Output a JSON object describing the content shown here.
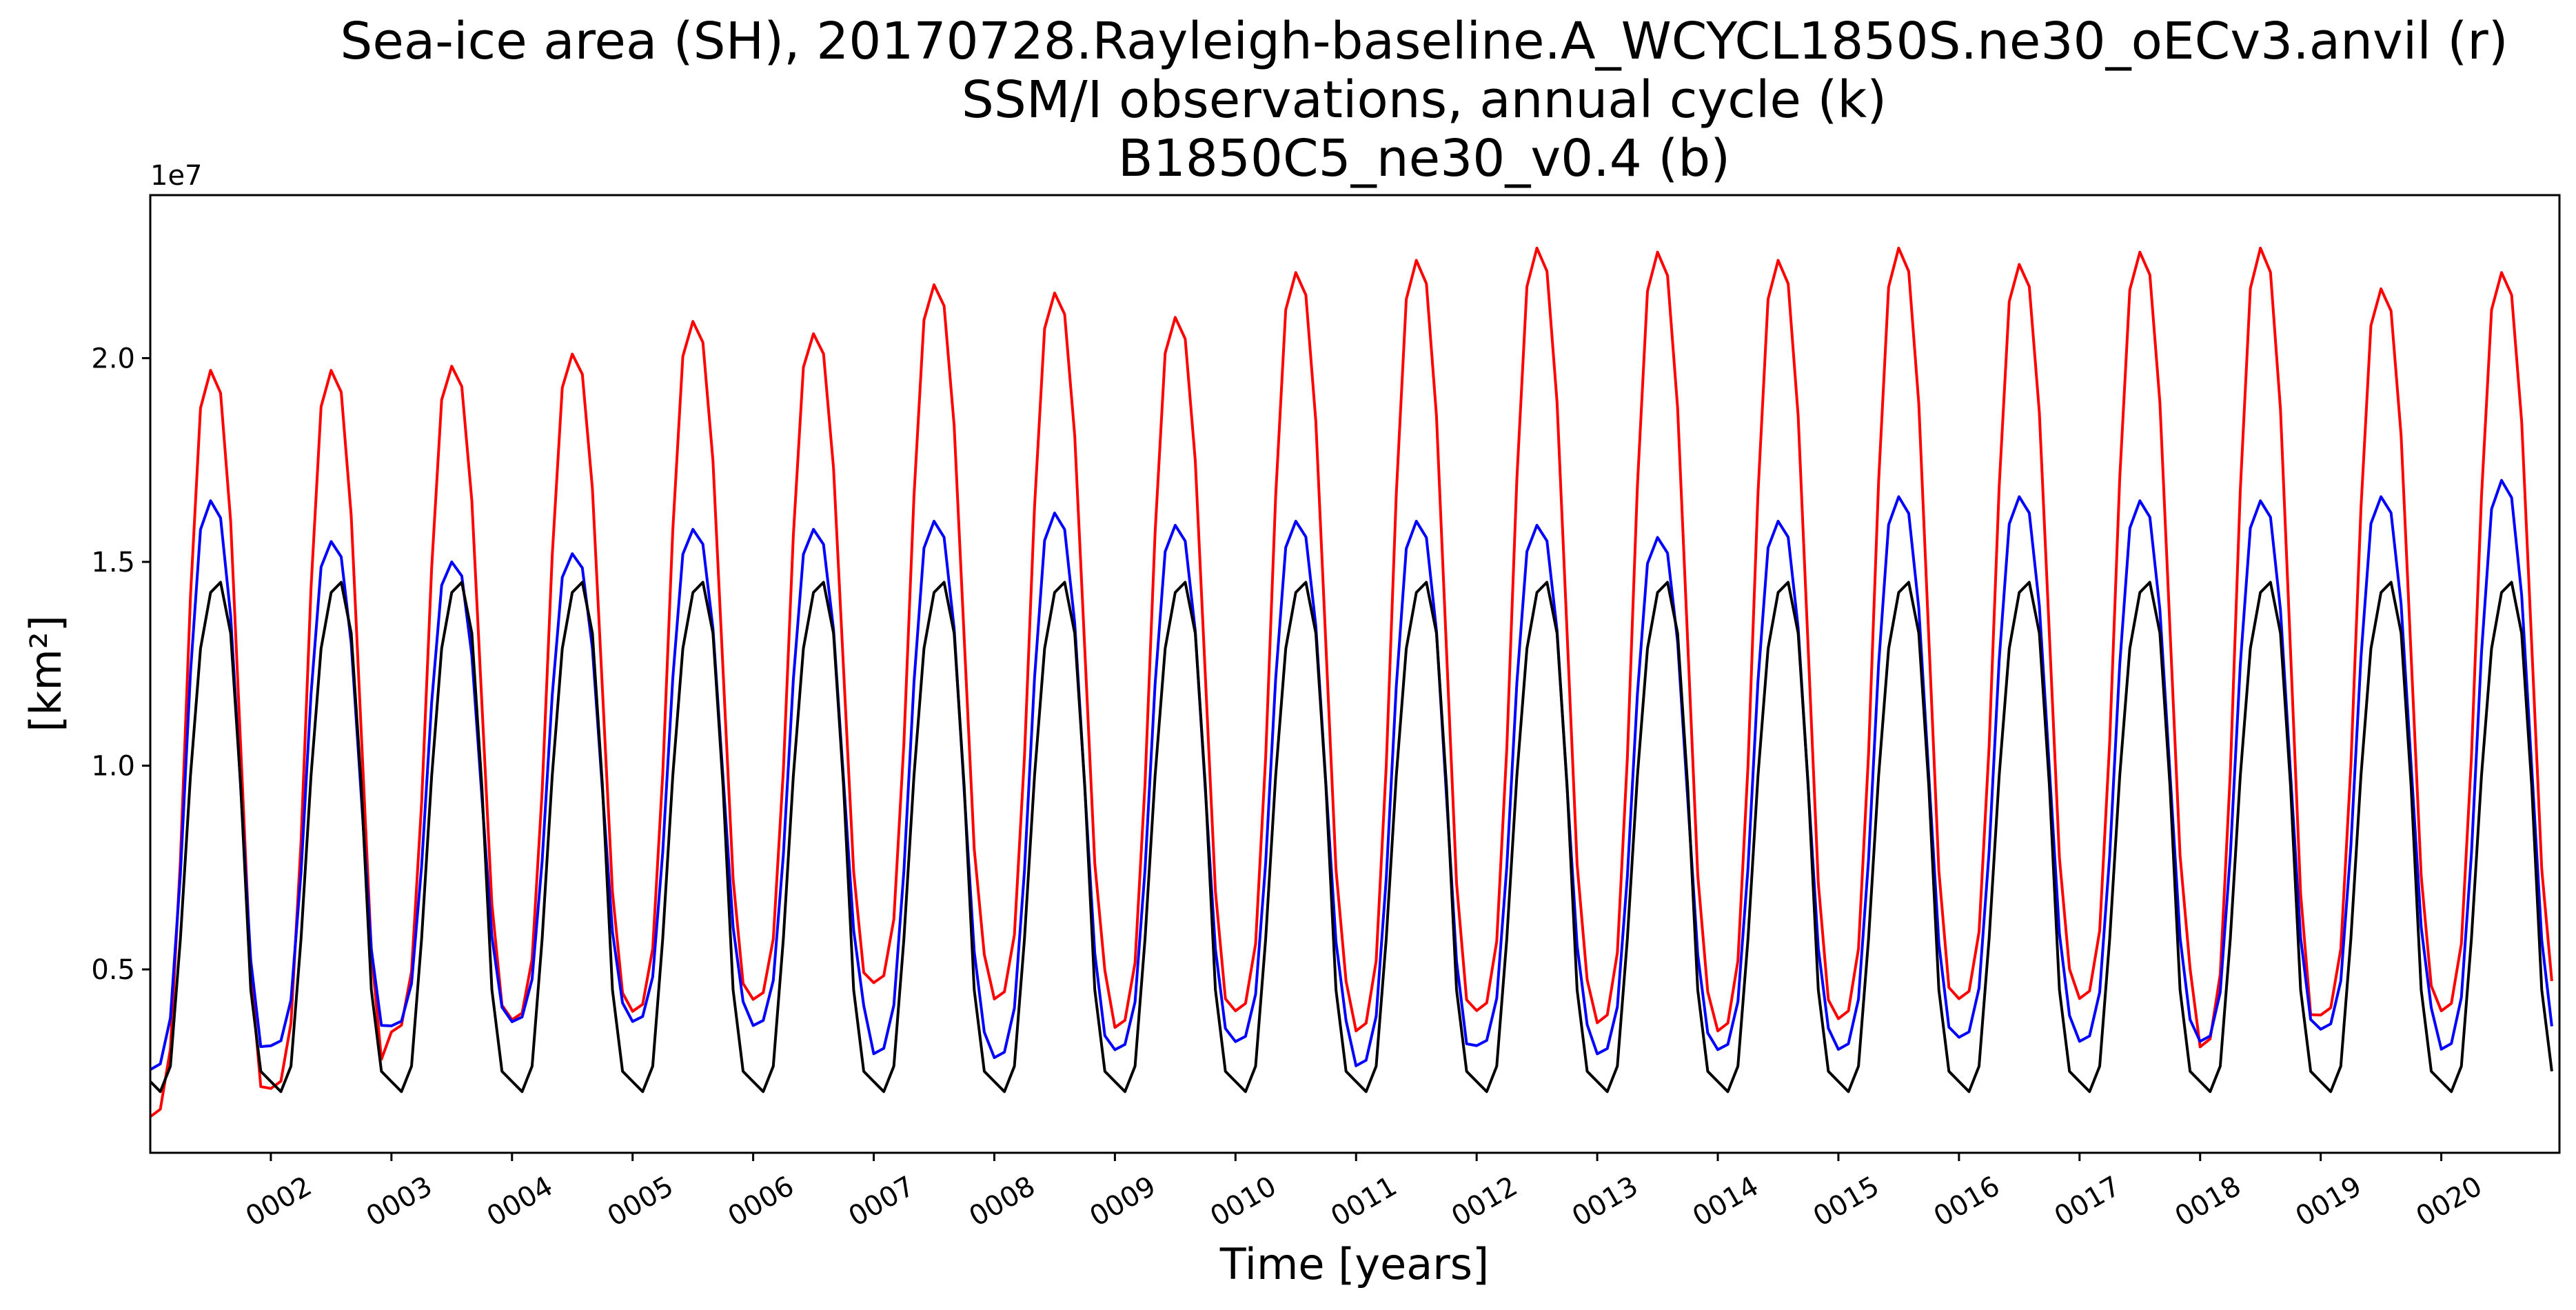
{
  "chart_data": {
    "type": "line",
    "title_lines": [
      "Sea-ice area (SH), 20170728.Rayleigh-baseline.A_WCYCL1850S.ne30_oECv3.anvil (r)",
      "SSM/I observations, annual cycle (k)",
      "B1850C5_ne30_v0.4 (b)"
    ],
    "xlabel": "Time [years]",
    "ylabel": "[km²]",
    "y_exponent_label": "1e7",
    "xlim": [
      1.0,
      20.98
    ],
    "ylim": [
      0.05,
      2.4
    ],
    "y_unit_scale": 10000000,
    "x_ticks": [
      2,
      3,
      4,
      5,
      6,
      7,
      8,
      9,
      10,
      11,
      12,
      13,
      14,
      15,
      16,
      17,
      18,
      19,
      20
    ],
    "x_tick_labels": [
      "0002",
      "0003",
      "0004",
      "0005",
      "0006",
      "0007",
      "0008",
      "0009",
      "0010",
      "0011",
      "0012",
      "0013",
      "0014",
      "0015",
      "0016",
      "0017",
      "0018",
      "0019",
      "0020"
    ],
    "y_ticks": [
      0.5,
      1.0,
      1.5,
      2.0
    ],
    "y_tick_labels": [
      "0.5",
      "1.0",
      "1.5",
      "2.0"
    ],
    "grid": false,
    "legend": "none",
    "series": [
      {
        "color": "#ff0000",
        "cycle_shape": [
          0.01,
          0.02,
          0.1,
          0.35,
          0.7,
          0.95,
          1.0,
          0.97,
          0.8,
          0.5,
          0.2,
          0.05
        ],
        "annual_min": [
          0.12,
          0.19,
          0.33,
          0.36,
          0.38,
          0.41,
          0.45,
          0.41,
          0.34,
          0.38,
          0.33,
          0.38,
          0.35,
          0.33,
          0.36,
          0.41,
          0.41,
          0.29,
          0.37,
          0.38
        ],
        "annual_max": [
          1.97,
          1.97,
          1.98,
          2.01,
          2.09,
          2.06,
          2.18,
          2.16,
          2.1,
          2.21,
          2.24,
          2.27,
          2.26,
          2.24,
          2.27,
          2.23,
          2.26,
          2.27,
          2.17,
          2.21
        ]
      },
      {
        "color": "#0000ff",
        "cycle_shape": [
          0.01,
          0.02,
          0.1,
          0.35,
          0.7,
          0.95,
          1.0,
          0.97,
          0.8,
          0.5,
          0.2,
          0.05
        ],
        "annual_min": [
          0.24,
          0.3,
          0.35,
          0.36,
          0.36,
          0.35,
          0.28,
          0.27,
          0.29,
          0.31,
          0.25,
          0.3,
          0.28,
          0.29,
          0.29,
          0.32,
          0.31,
          0.31,
          0.34,
          0.29
        ],
        "annual_max": [
          1.65,
          1.55,
          1.5,
          1.52,
          1.58,
          1.58,
          1.6,
          1.62,
          1.59,
          1.6,
          1.6,
          1.59,
          1.56,
          1.6,
          1.66,
          1.66,
          1.65,
          1.65,
          1.66,
          1.7
        ]
      },
      {
        "color": "#000000",
        "cycle_shape": [
          0.02,
          0.0,
          0.05,
          0.3,
          0.62,
          0.87,
          0.98,
          1.0,
          0.9,
          0.6,
          0.2,
          0.04
        ],
        "annual_min": [
          0.2,
          0.2,
          0.2,
          0.2,
          0.2,
          0.2,
          0.2,
          0.2,
          0.2,
          0.2,
          0.2,
          0.2,
          0.2,
          0.2,
          0.2,
          0.2,
          0.2,
          0.2,
          0.2,
          0.2
        ],
        "annual_max": [
          1.45,
          1.45,
          1.45,
          1.45,
          1.45,
          1.45,
          1.45,
          1.45,
          1.45,
          1.45,
          1.45,
          1.45,
          1.45,
          1.45,
          1.45,
          1.45,
          1.45,
          1.45,
          1.45,
          1.45
        ]
      }
    ]
  }
}
